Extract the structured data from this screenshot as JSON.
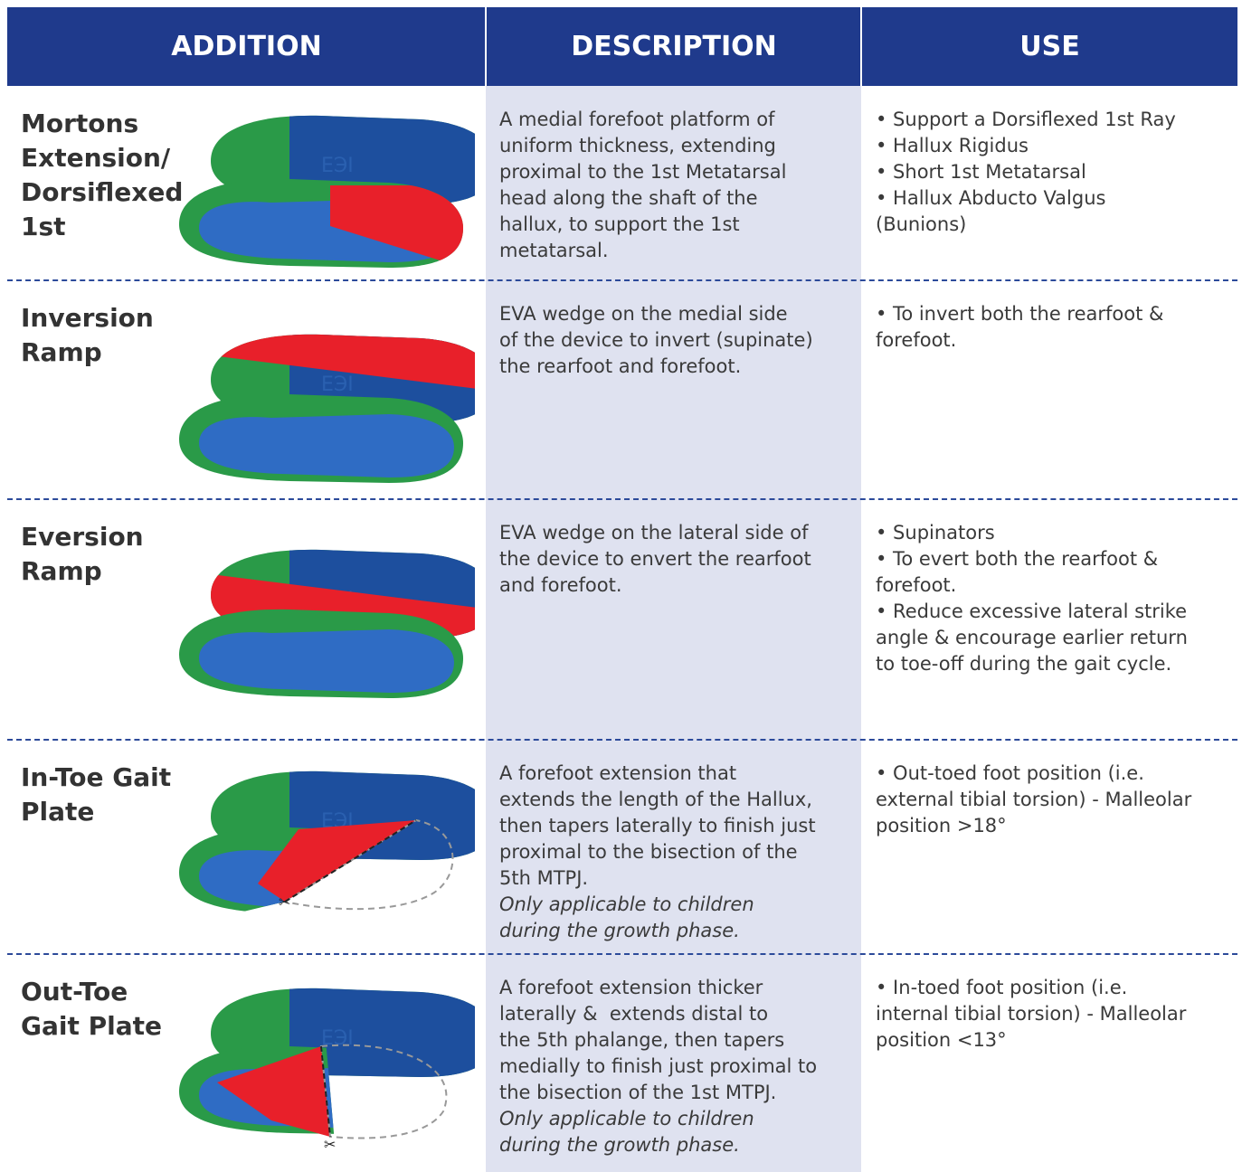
{
  "header": {
    "columns": [
      "ADDITION",
      "DESCRIPTION",
      "USE"
    ]
  },
  "rows": [
    {
      "addition": [
        "Mortons",
        "Extension/",
        "Dorsiflexed",
        "1st"
      ],
      "description": [
        "A medial forefoot platform of",
        "uniform thickness, extending",
        "proximal to the 1st Metatarsal",
        "head along the shaft of the",
        "hallux, to support the 1st",
        "metatarsal."
      ],
      "use": [
        "• Support a Dorsiflexed 1st Ray",
        "• Hallux Rigidus",
        "• Short 1st Metatarsal",
        "• Hallux Abducto Valgus",
        "(Bunions)"
      ]
    },
    {
      "addition": [
        "Inversion",
        "Ramp"
      ],
      "description": [
        "EVA wedge on the medial side",
        "of the device to invert (supinate)",
        "the rearfoot and forefoot."
      ],
      "use": [
        "• To invert both the rearfoot &",
        "forefoot."
      ]
    },
    {
      "addition": [
        "Eversion",
        "Ramp"
      ],
      "description": [
        "EVA wedge on the lateral side of",
        "the device to envert the rearfoot",
        "and forefoot."
      ],
      "use": [
        "• Supinators",
        "• To evert both the rearfoot &",
        "forefoot.",
        "• Reduce excessive lateral strike",
        "angle & encourage earlier return",
        "to toe-off during the gait cycle."
      ]
    },
    {
      "addition": [
        "In-Toe Gait",
        "Plate"
      ],
      "description": [
        "A forefoot extension that",
        "extends the length of the Hallux,",
        "then tapers laterally to finish just",
        "proximal to the bisection of the",
        "5th MTPJ."
      ],
      "note": [
        "Only applicable to children",
        "during the growth phase."
      ],
      "use": [
        "• Out-toed foot position (i.e.",
        "external tibial torsion) - Malleolar",
        "position >18°"
      ]
    },
    {
      "addition": [
        "Out-Toe",
        "Gait Plate"
      ],
      "description": [
        "A forefoot extension thicker",
        "laterally &  extends distal to",
        "the 5th phalange, then tapers",
        "medially to finish just proximal to",
        "the bisection of the 1st MTPJ."
      ],
      "note": [
        "Only applicable to children",
        "during the growth phase."
      ],
      "use": [
        "• In-toed foot position (i.e.",
        "internal tibial torsion) - Malleolar",
        "position <13°"
      ]
    }
  ]
}
